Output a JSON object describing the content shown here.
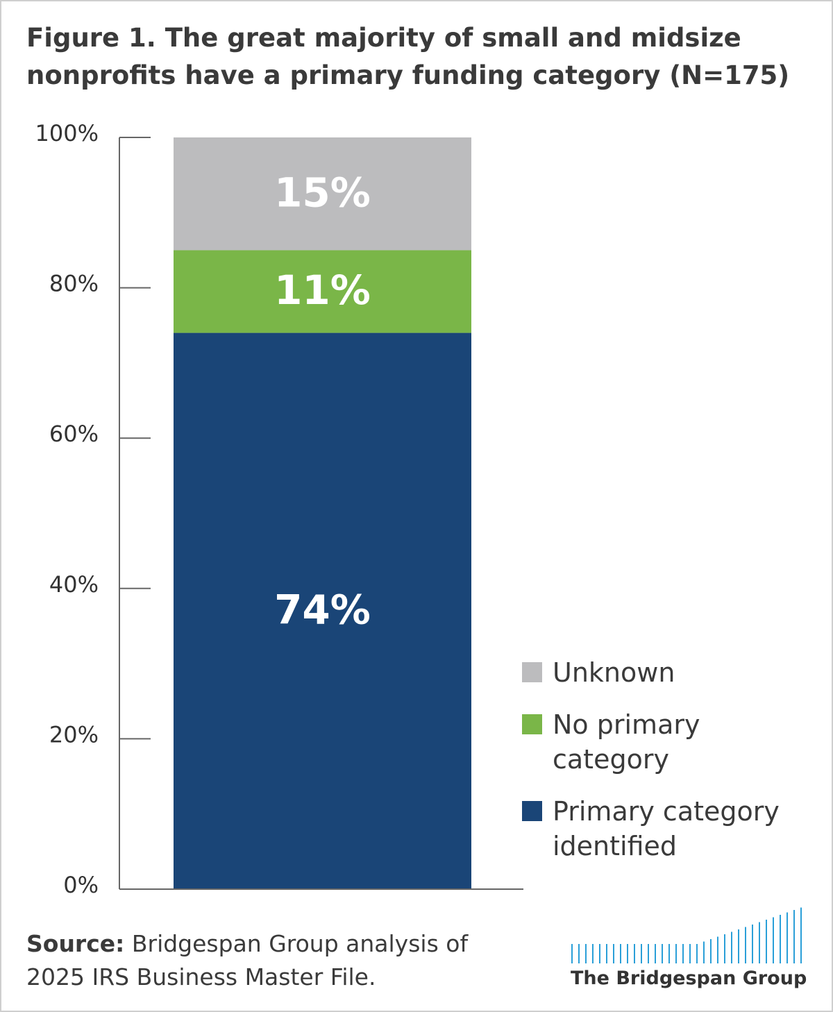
{
  "chart_data": {
    "type": "stacked_bar",
    "title": "Figure 1. The great majority of small and midsize nonprofits have a primary funding category (N=175)",
    "categories": [
      null
    ],
    "series": [
      {
        "name": "Primary category identified",
        "color": "#1a4577",
        "values": [
          74
        ],
        "value_labels": [
          "74%"
        ]
      },
      {
        "name": "No primary category",
        "color": "#7ab648",
        "values": [
          11
        ],
        "value_labels": [
          "11%"
        ]
      },
      {
        "name": "Unknown",
        "color": "#bcbcbe",
        "values": [
          15
        ],
        "value_labels": [
          "15%"
        ]
      }
    ],
    "ylim": [
      0,
      100
    ],
    "yticks": [
      {
        "value": 0,
        "label": "0%"
      },
      {
        "value": 20,
        "label": "20%"
      },
      {
        "value": 40,
        "label": "40%"
      },
      {
        "value": 60,
        "label": "60%"
      },
      {
        "value": 80,
        "label": "80%"
      },
      {
        "value": 100,
        "label": "100%"
      }
    ],
    "legend_order": "reversed",
    "source_label": "Source:",
    "source": "Bridgespan Group analysis of 2025 IRS Business Master File.",
    "logo": "The Bridgespan Group"
  }
}
